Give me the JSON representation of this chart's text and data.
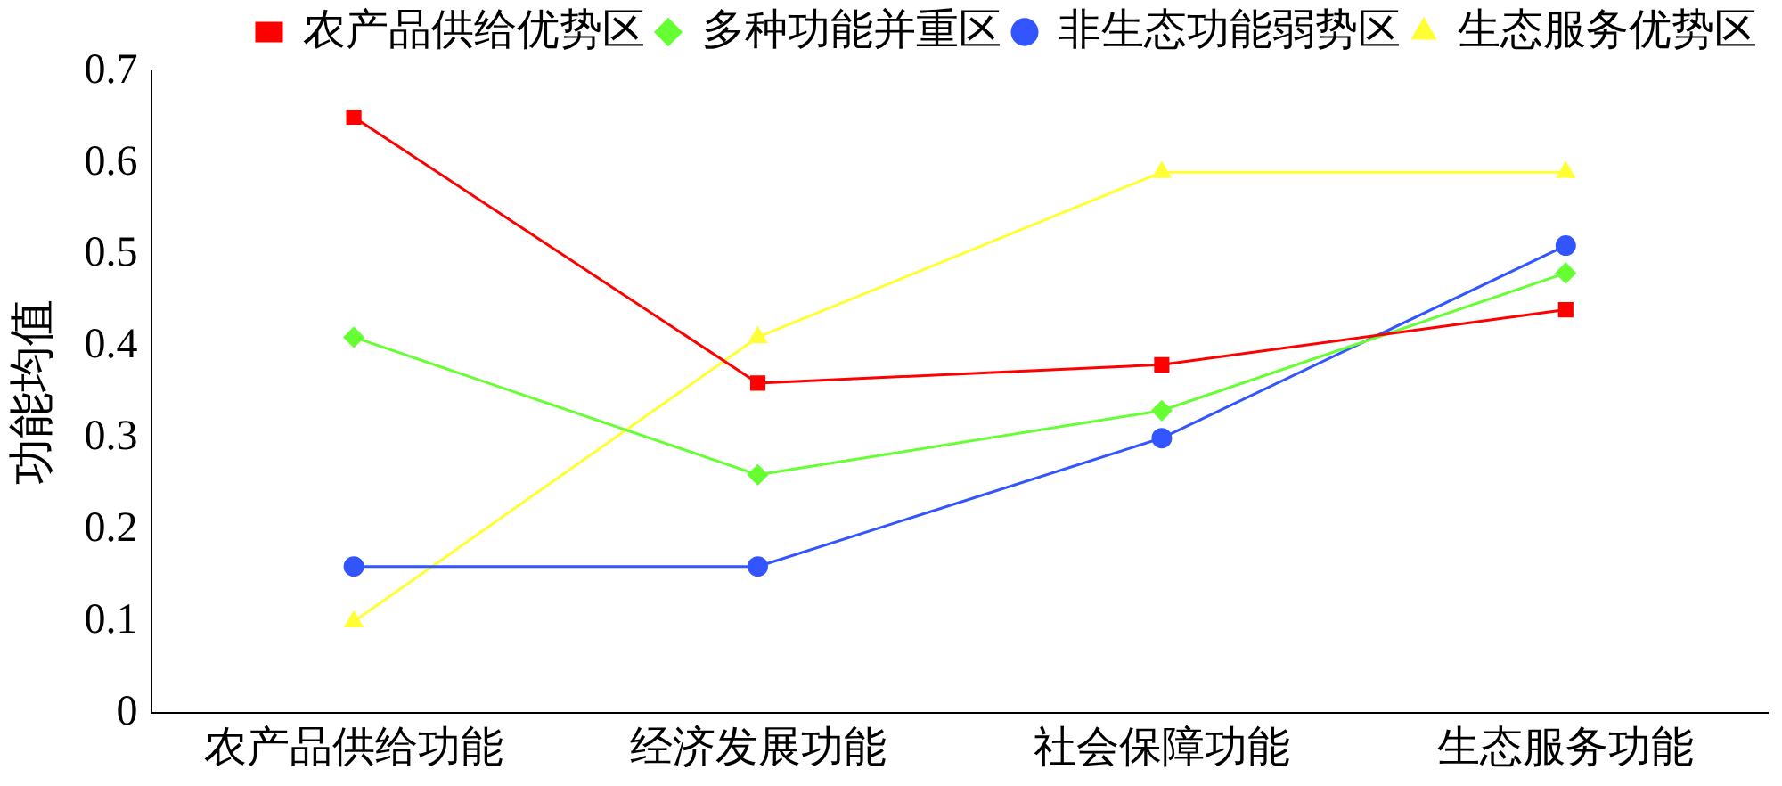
{
  "chart_data": {
    "type": "line",
    "ylabel": "功能均值",
    "categories": [
      "农产品供给功能",
      "经济发展功能",
      "社会保障功能",
      "生态服务功能"
    ],
    "series": [
      {
        "name": "农产品供给优势区",
        "color": "#ff0000",
        "marker": "square",
        "values": [
          0.65,
          0.36,
          0.38,
          0.44
        ]
      },
      {
        "name": "多种功能并重区",
        "color": "#66ff33",
        "marker": "diamond",
        "values": [
          0.41,
          0.26,
          0.33,
          0.48
        ]
      },
      {
        "name": "非生态功能弱势区",
        "color": "#3355ff",
        "marker": "circle",
        "values": [
          0.16,
          0.16,
          0.3,
          0.51
        ]
      },
      {
        "name": "生态服务优势区",
        "color": "#ffff33",
        "marker": "triangle",
        "values": [
          0.1,
          0.41,
          0.59,
          0.59
        ]
      }
    ],
    "ylim": [
      0,
      0.7
    ],
    "yticks": [
      0,
      0.1,
      0.2,
      0.3,
      0.4,
      0.5,
      0.6,
      0.7
    ],
    "grid": false,
    "legend": "top",
    "line_style": "solid"
  }
}
